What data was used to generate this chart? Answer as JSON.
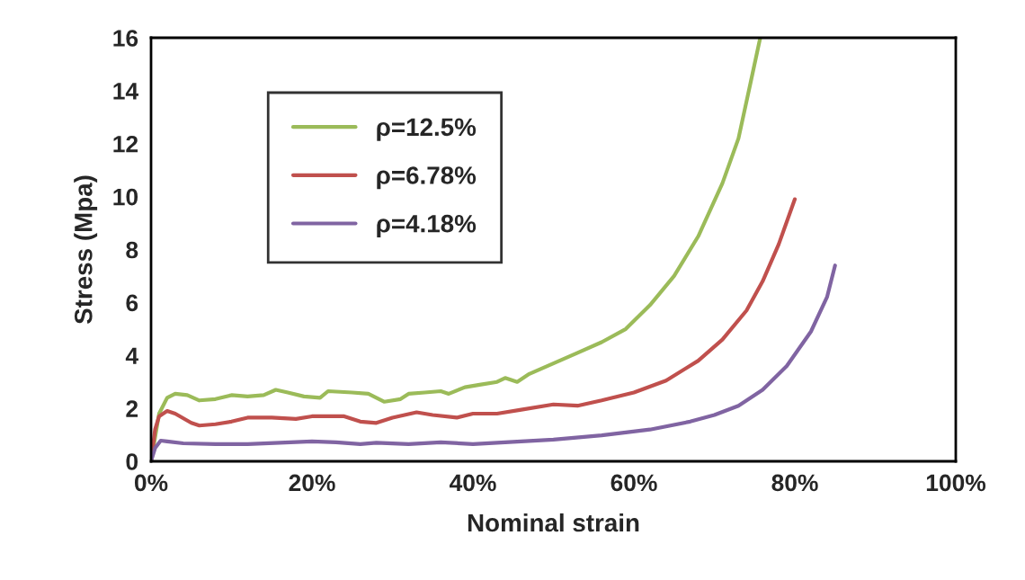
{
  "chart_data": {
    "type": "line",
    "xlabel": "Nominal strain",
    "ylabel": "Stress (Mpa)",
    "xlim": [
      0,
      1
    ],
    "xticks": [
      {
        "value": 0,
        "label": "0%"
      },
      {
        "value": 0.2,
        "label": "20%"
      },
      {
        "value": 0.4,
        "label": "40%"
      },
      {
        "value": 0.6,
        "label": "60%"
      },
      {
        "value": 0.8,
        "label": "80%"
      },
      {
        "value": 1,
        "label": "100%"
      }
    ],
    "ylim": [
      0,
      16
    ],
    "yticks": [
      0,
      2,
      4,
      6,
      8,
      10,
      12,
      14,
      16
    ],
    "grid": false,
    "legend": "top left",
    "marker": "none",
    "line_style": "solid",
    "series": [
      {
        "name": "ρ=12.5%",
        "color": "#9bbb59",
        "x": [
          0,
          0.01,
          0.02,
          0.03,
          0.045,
          0.06,
          0.08,
          0.1,
          0.12,
          0.14,
          0.155,
          0.17,
          0.19,
          0.21,
          0.22,
          0.25,
          0.27,
          0.28,
          0.29,
          0.31,
          0.32,
          0.34,
          0.36,
          0.37,
          0.39,
          0.41,
          0.43,
          0.44,
          0.455,
          0.47,
          0.5,
          0.53,
          0.56,
          0.59,
          0.62,
          0.65,
          0.68,
          0.71,
          0.73,
          0.745,
          0.757
        ],
        "values": [
          0,
          1.8,
          2.4,
          2.55,
          2.5,
          2.3,
          2.35,
          2.5,
          2.45,
          2.5,
          2.7,
          2.6,
          2.45,
          2.4,
          2.65,
          2.6,
          2.55,
          2.4,
          2.25,
          2.35,
          2.55,
          2.6,
          2.65,
          2.55,
          2.8,
          2.9,
          3.0,
          3.15,
          3.0,
          3.3,
          3.7,
          4.1,
          4.5,
          5.0,
          5.9,
          7.0,
          8.5,
          10.5,
          12.2,
          14.3,
          16
        ]
      },
      {
        "name": "ρ=6.78%",
        "color": "#c0504d",
        "x": [
          0,
          0.005,
          0.01,
          0.02,
          0.03,
          0.05,
          0.06,
          0.08,
          0.1,
          0.12,
          0.15,
          0.18,
          0.2,
          0.24,
          0.26,
          0.28,
          0.3,
          0.33,
          0.35,
          0.38,
          0.4,
          0.43,
          0.46,
          0.5,
          0.53,
          0.56,
          0.6,
          0.64,
          0.68,
          0.71,
          0.74,
          0.76,
          0.78,
          0.8
        ],
        "values": [
          0,
          1.2,
          1.7,
          1.9,
          1.8,
          1.45,
          1.35,
          1.4,
          1.5,
          1.65,
          1.65,
          1.6,
          1.7,
          1.7,
          1.5,
          1.45,
          1.65,
          1.85,
          1.75,
          1.65,
          1.8,
          1.8,
          1.95,
          2.15,
          2.1,
          2.3,
          2.6,
          3.05,
          3.8,
          4.6,
          5.7,
          6.8,
          8.2,
          9.9
        ]
      },
      {
        "name": "ρ=4.18%",
        "color": "#8064a2",
        "x": [
          0,
          0.005,
          0.012,
          0.02,
          0.04,
          0.08,
          0.12,
          0.16,
          0.2,
          0.23,
          0.26,
          0.28,
          0.32,
          0.36,
          0.4,
          0.44,
          0.5,
          0.56,
          0.62,
          0.67,
          0.7,
          0.73,
          0.76,
          0.79,
          0.82,
          0.84,
          0.85
        ],
        "values": [
          0,
          0.5,
          0.78,
          0.75,
          0.68,
          0.65,
          0.65,
          0.7,
          0.75,
          0.72,
          0.65,
          0.7,
          0.65,
          0.72,
          0.65,
          0.72,
          0.82,
          0.98,
          1.2,
          1.5,
          1.75,
          2.1,
          2.7,
          3.6,
          4.9,
          6.2,
          7.4
        ]
      }
    ]
  }
}
